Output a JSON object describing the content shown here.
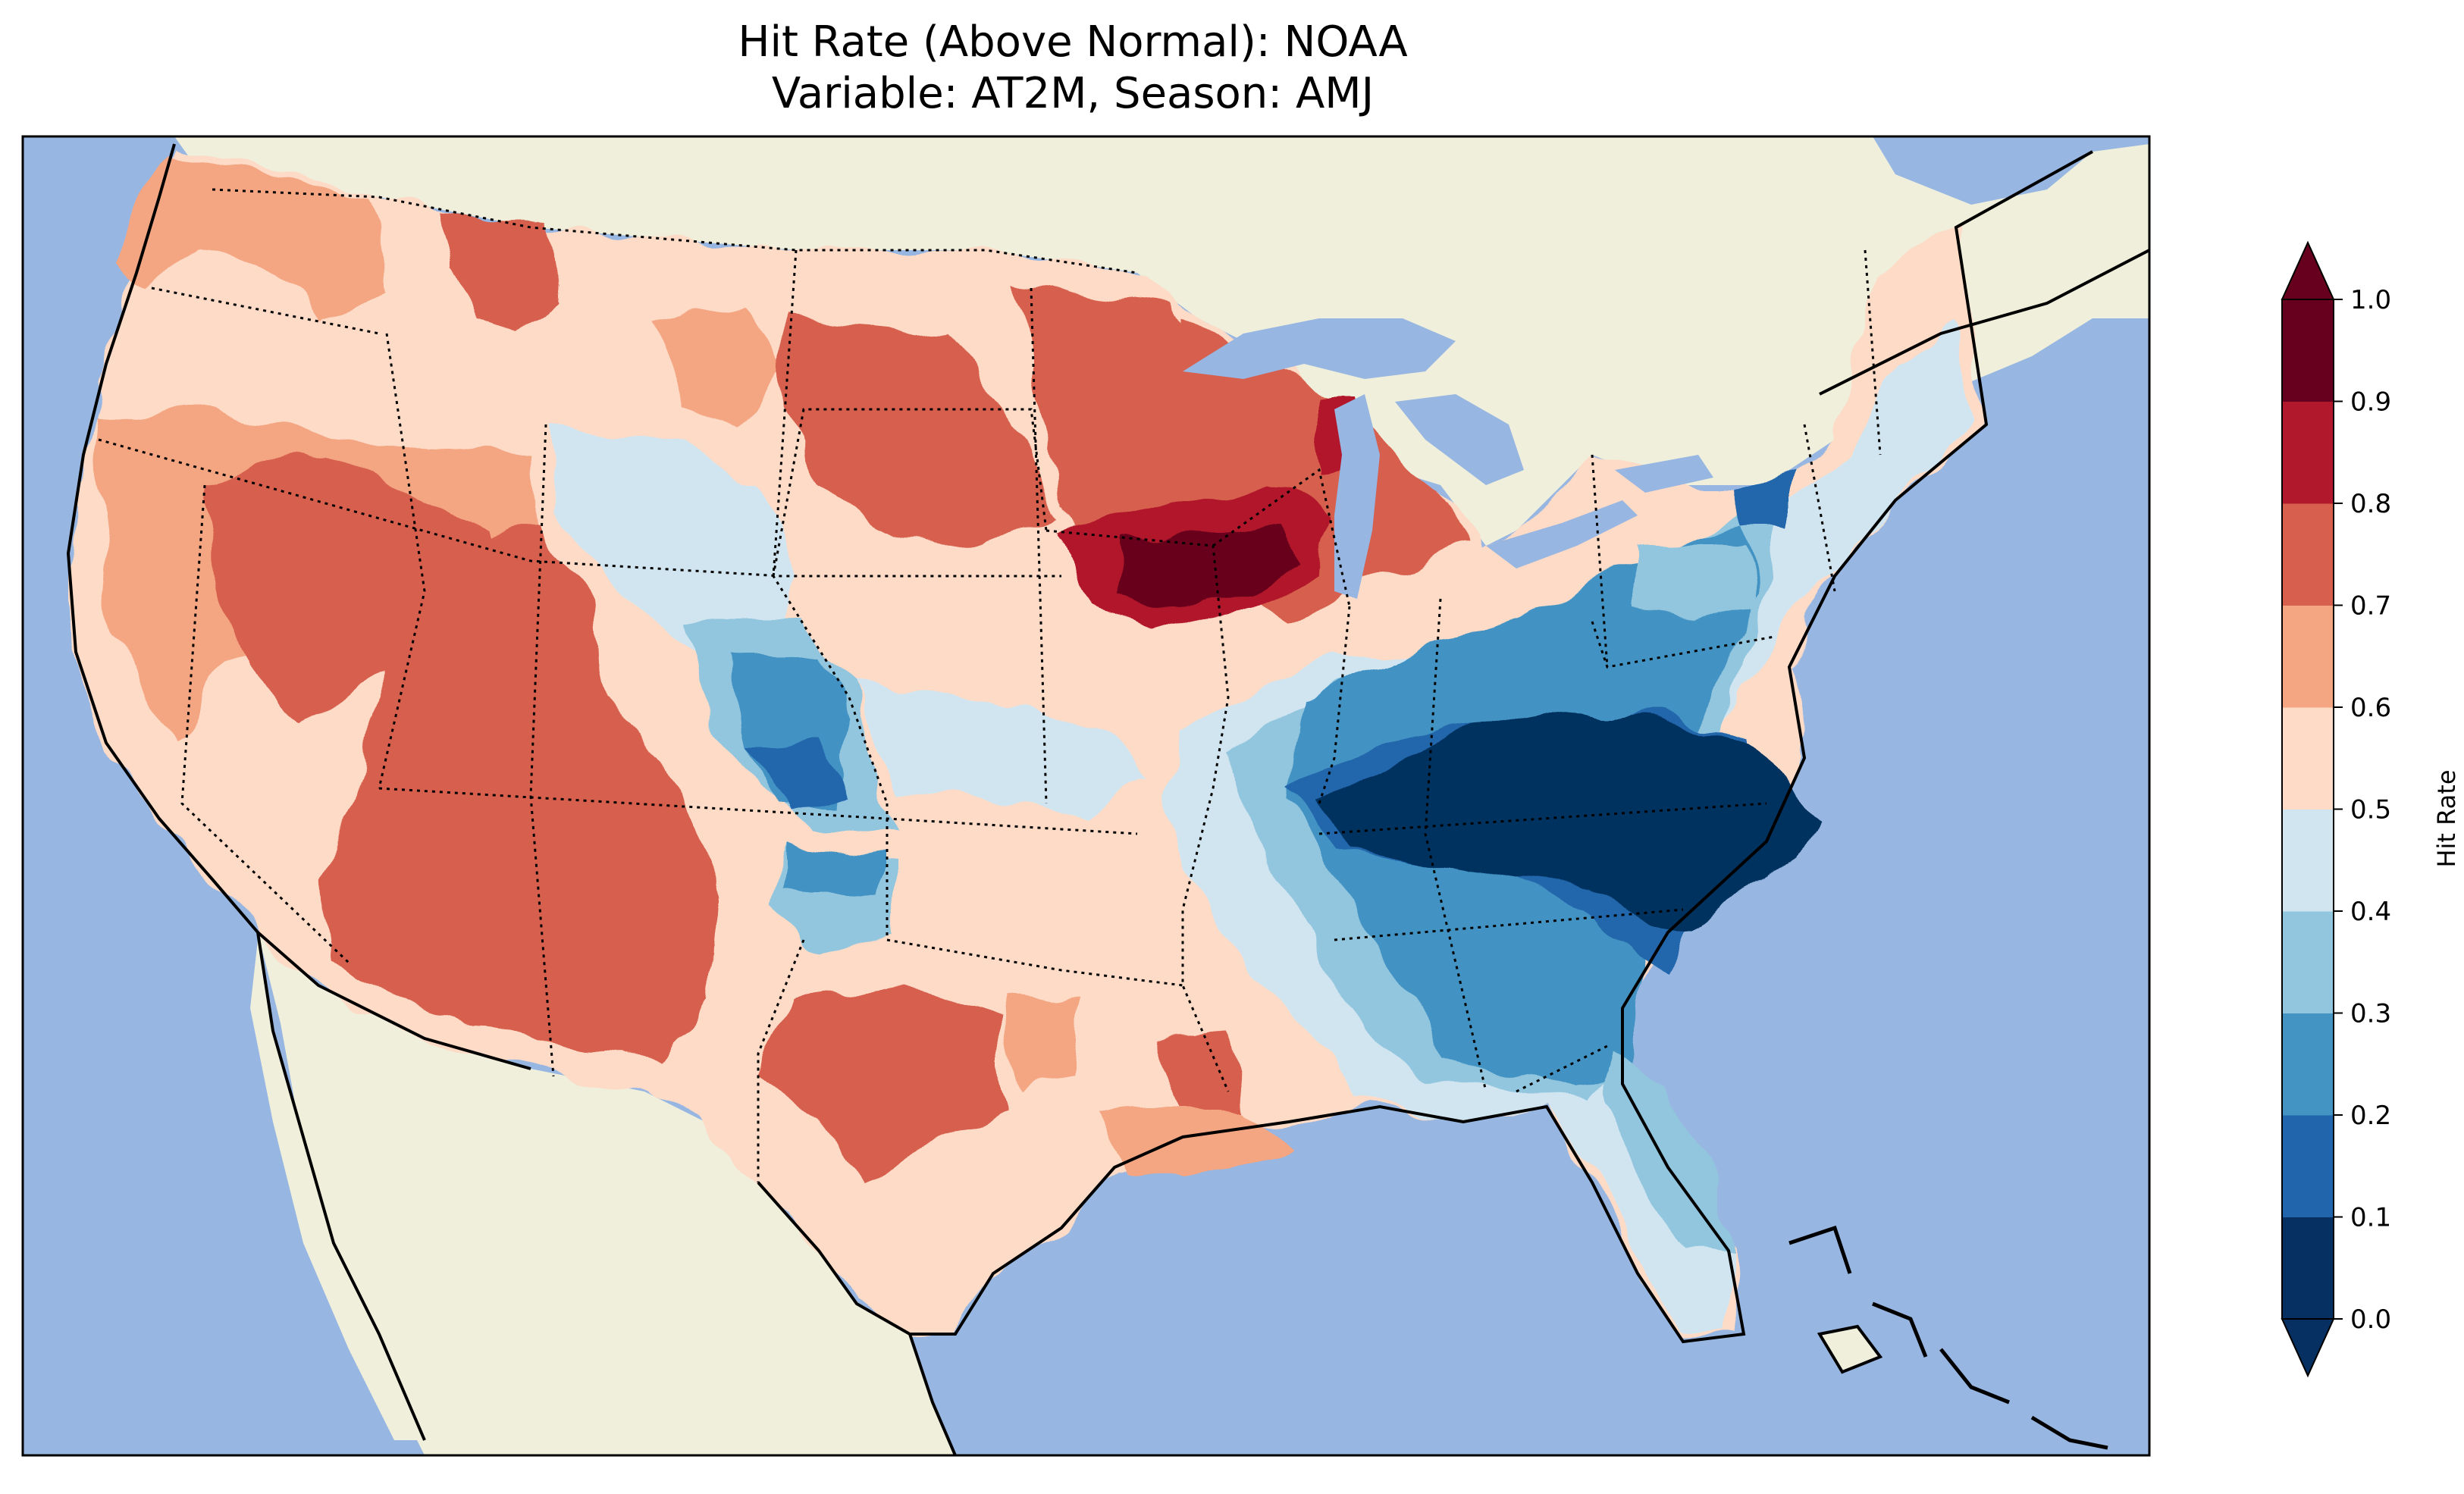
{
  "chart_data": {
    "type": "heatmap",
    "title_line1": "Hit Rate (Above Normal): NOAA",
    "title_line2": "Variable: AT2M, Season: AMJ",
    "colorbar": {
      "label": "Hit Rate",
      "ticks": [
        "0.0",
        "0.1",
        "0.2",
        "0.3",
        "0.4",
        "0.5",
        "0.6",
        "0.7",
        "0.8",
        "0.9",
        "1.0"
      ],
      "levels": [
        0.0,
        0.1,
        0.2,
        0.3,
        0.4,
        0.5,
        0.6,
        0.7,
        0.8,
        0.9,
        1.0
      ],
      "colors": [
        "#053061",
        "#2166ac",
        "#4393c3",
        "#92c5de",
        "#d1e5f0",
        "#fddbc7",
        "#f4a582",
        "#d6604d",
        "#b2182b",
        "#67001f"
      ],
      "extend": "both"
    },
    "regions": [
      {
        "name": "Pacific Northwest",
        "value": 0.65
      },
      {
        "name": "California coast",
        "value": 0.45
      },
      {
        "name": "Nevada",
        "value": 0.75
      },
      {
        "name": "Utah",
        "value": 0.75
      },
      {
        "name": "Arizona",
        "value": 0.75
      },
      {
        "name": "New Mexico",
        "value": 0.75
      },
      {
        "name": "Montana",
        "value": 0.55
      },
      {
        "name": "Wyoming",
        "value": 0.45
      },
      {
        "name": "Colorado",
        "value": 0.25
      },
      {
        "name": "North Dakota",
        "value": 0.65
      },
      {
        "name": "South Dakota",
        "value": 0.75
      },
      {
        "name": "Nebraska",
        "value": 0.55
      },
      {
        "name": "Kansas",
        "value": 0.45
      },
      {
        "name": "Oklahoma",
        "value": 0.55
      },
      {
        "name": "Texas",
        "value": 0.65
      },
      {
        "name": "Minnesota",
        "value": 0.75
      },
      {
        "name": "Iowa / S. Wisconsin",
        "value": 0.95
      },
      {
        "name": "Michigan",
        "value": 0.75
      },
      {
        "name": "Missouri",
        "value": 0.45
      },
      {
        "name": "Arkansas / Louisiana",
        "value": 0.6
      },
      {
        "name": "Illinois / Indiana",
        "value": 0.25
      },
      {
        "name": "Ohio / Pennsylvania",
        "value": 0.25
      },
      {
        "name": "Kentucky / Tennessee",
        "value": 0.05
      },
      {
        "name": "Virginia / N. Carolina",
        "value": 0.05
      },
      {
        "name": "South Carolina / Georgia",
        "value": 0.25
      },
      {
        "name": "Alabama / Mississippi",
        "value": 0.35
      },
      {
        "name": "Florida",
        "value": 0.4
      },
      {
        "name": "New York / New England",
        "value": 0.35
      }
    ]
  }
}
